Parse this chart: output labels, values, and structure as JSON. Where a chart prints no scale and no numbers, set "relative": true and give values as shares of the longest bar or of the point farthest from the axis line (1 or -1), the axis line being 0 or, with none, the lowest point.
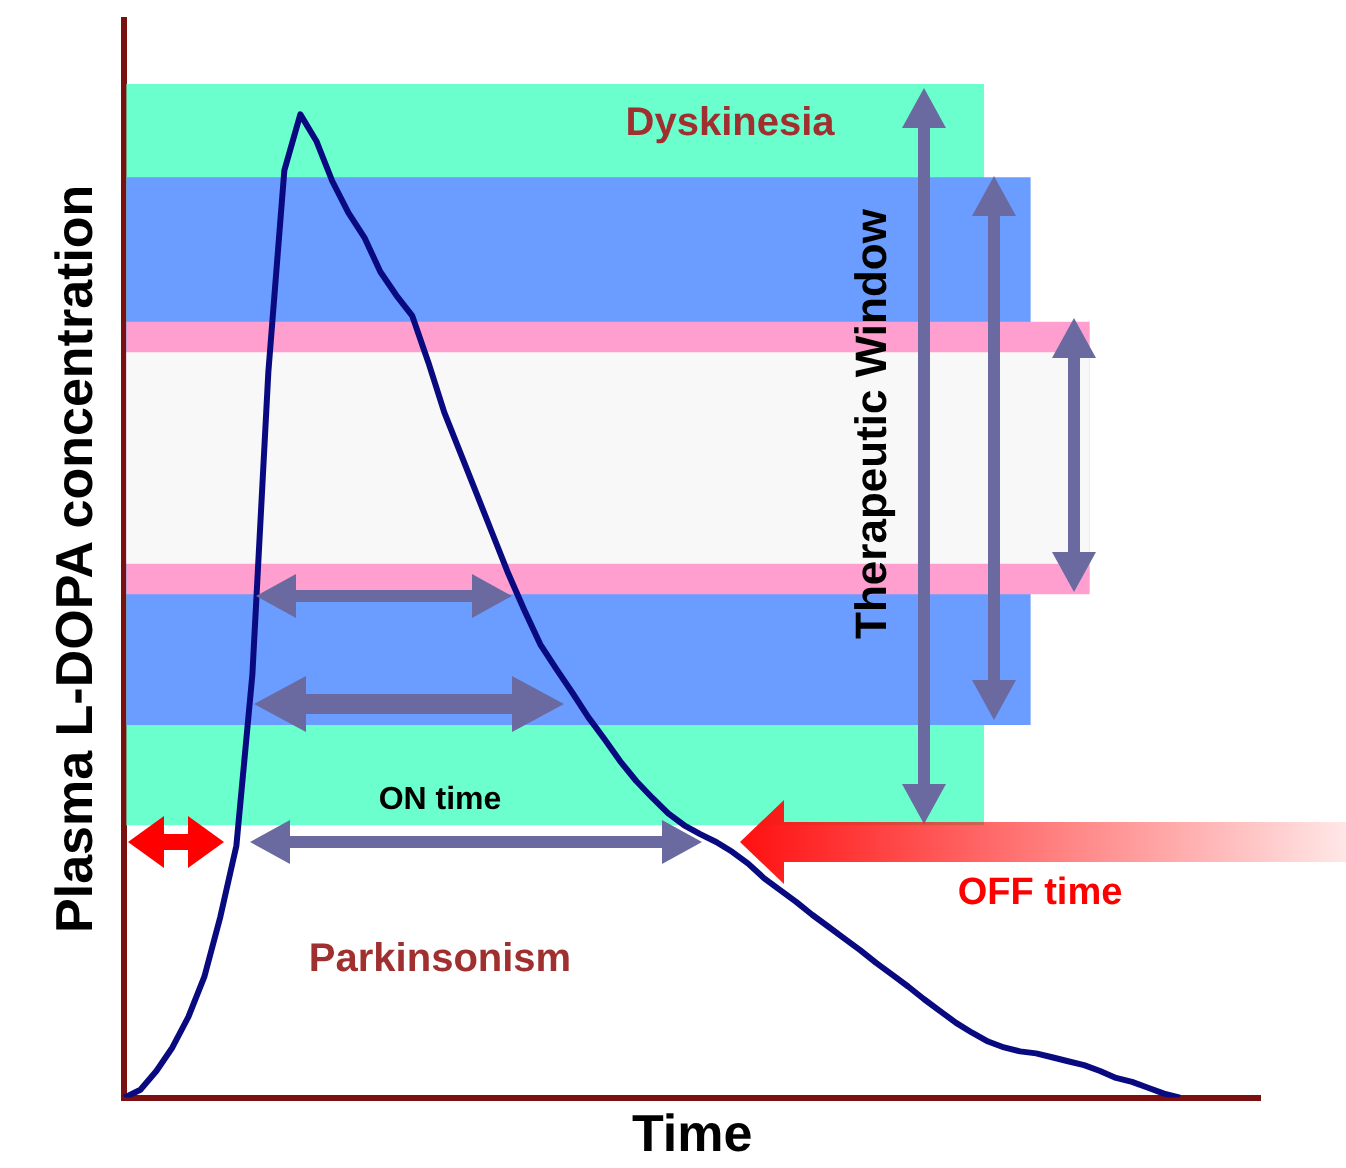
{
  "chart_data": {
    "type": "line",
    "relative": true,
    "xlabel": "Time",
    "ylabel": "Plasma L-DOPA concentration",
    "categories": [
      null,
      null,
      null,
      null,
      null,
      null,
      null,
      null,
      null,
      null,
      null,
      null,
      null,
      null,
      null,
      null,
      null,
      null,
      null,
      null,
      null,
      null,
      null,
      null,
      null,
      null,
      null,
      null,
      null,
      null,
      null,
      null,
      null,
      null,
      null,
      null,
      null,
      null,
      null,
      null,
      null,
      null,
      null,
      null,
      null,
      null,
      null,
      null,
      null,
      null,
      null,
      null,
      null,
      null,
      null,
      null,
      null,
      null,
      null,
      null,
      null,
      null,
      null,
      null,
      null,
      null,
      null,
      null,
      null,
      null,
      null,
      null
    ],
    "series": [
      {
        "color": "#0a0a80",
        "values": [
          0,
          0.008,
          0.027,
          0.051,
          0.082,
          0.123,
          0.184,
          0.256,
          0.43,
          0.738,
          0.943,
          1,
          0.973,
          0.932,
          0.9,
          0.875,
          0.84,
          0.816,
          0.795,
          0.748,
          0.697,
          0.656,
          0.615,
          0.574,
          0.533,
          0.496,
          0.461,
          0.436,
          0.412,
          0.387,
          0.365,
          0.342,
          0.322,
          0.305,
          0.289,
          0.277,
          0.268,
          0.26,
          0.25,
          0.238,
          0.223,
          0.211,
          0.199,
          0.186,
          0.174,
          0.162,
          0.15,
          0.137,
          0.125,
          0.113,
          0.1,
          0.088,
          0.076,
          0.066,
          0.057,
          0.051,
          0.047,
          0.045,
          0.041,
          0.037,
          0.033,
          0.027,
          0.02,
          0.016,
          0.01,
          0.004,
          0,
          null,
          null,
          null,
          null,
          null
        ]
      }
    ],
    "bands": [
      {
        "axis": "y",
        "from": 0.277,
        "to": 1.031,
        "color": "#6affcc"
      },
      {
        "axis": "y",
        "from": 0.379,
        "to": 0.936,
        "color": "#6b9cff"
      },
      {
        "axis": "y",
        "from": 0.512,
        "to": 0.789,
        "color": "#ff9fcf"
      },
      {
        "axis": "y",
        "from": 0.543,
        "to": 0.758,
        "color": "#f8f8f8"
      }
    ],
    "annotations": [
      "Dyskinesia",
      "Parkinsonism",
      "Therapeutic Window",
      "ON time",
      "OFF time"
    ],
    "marker": "none",
    "line_style": "solid",
    "grid": false,
    "legend": false
  }
}
